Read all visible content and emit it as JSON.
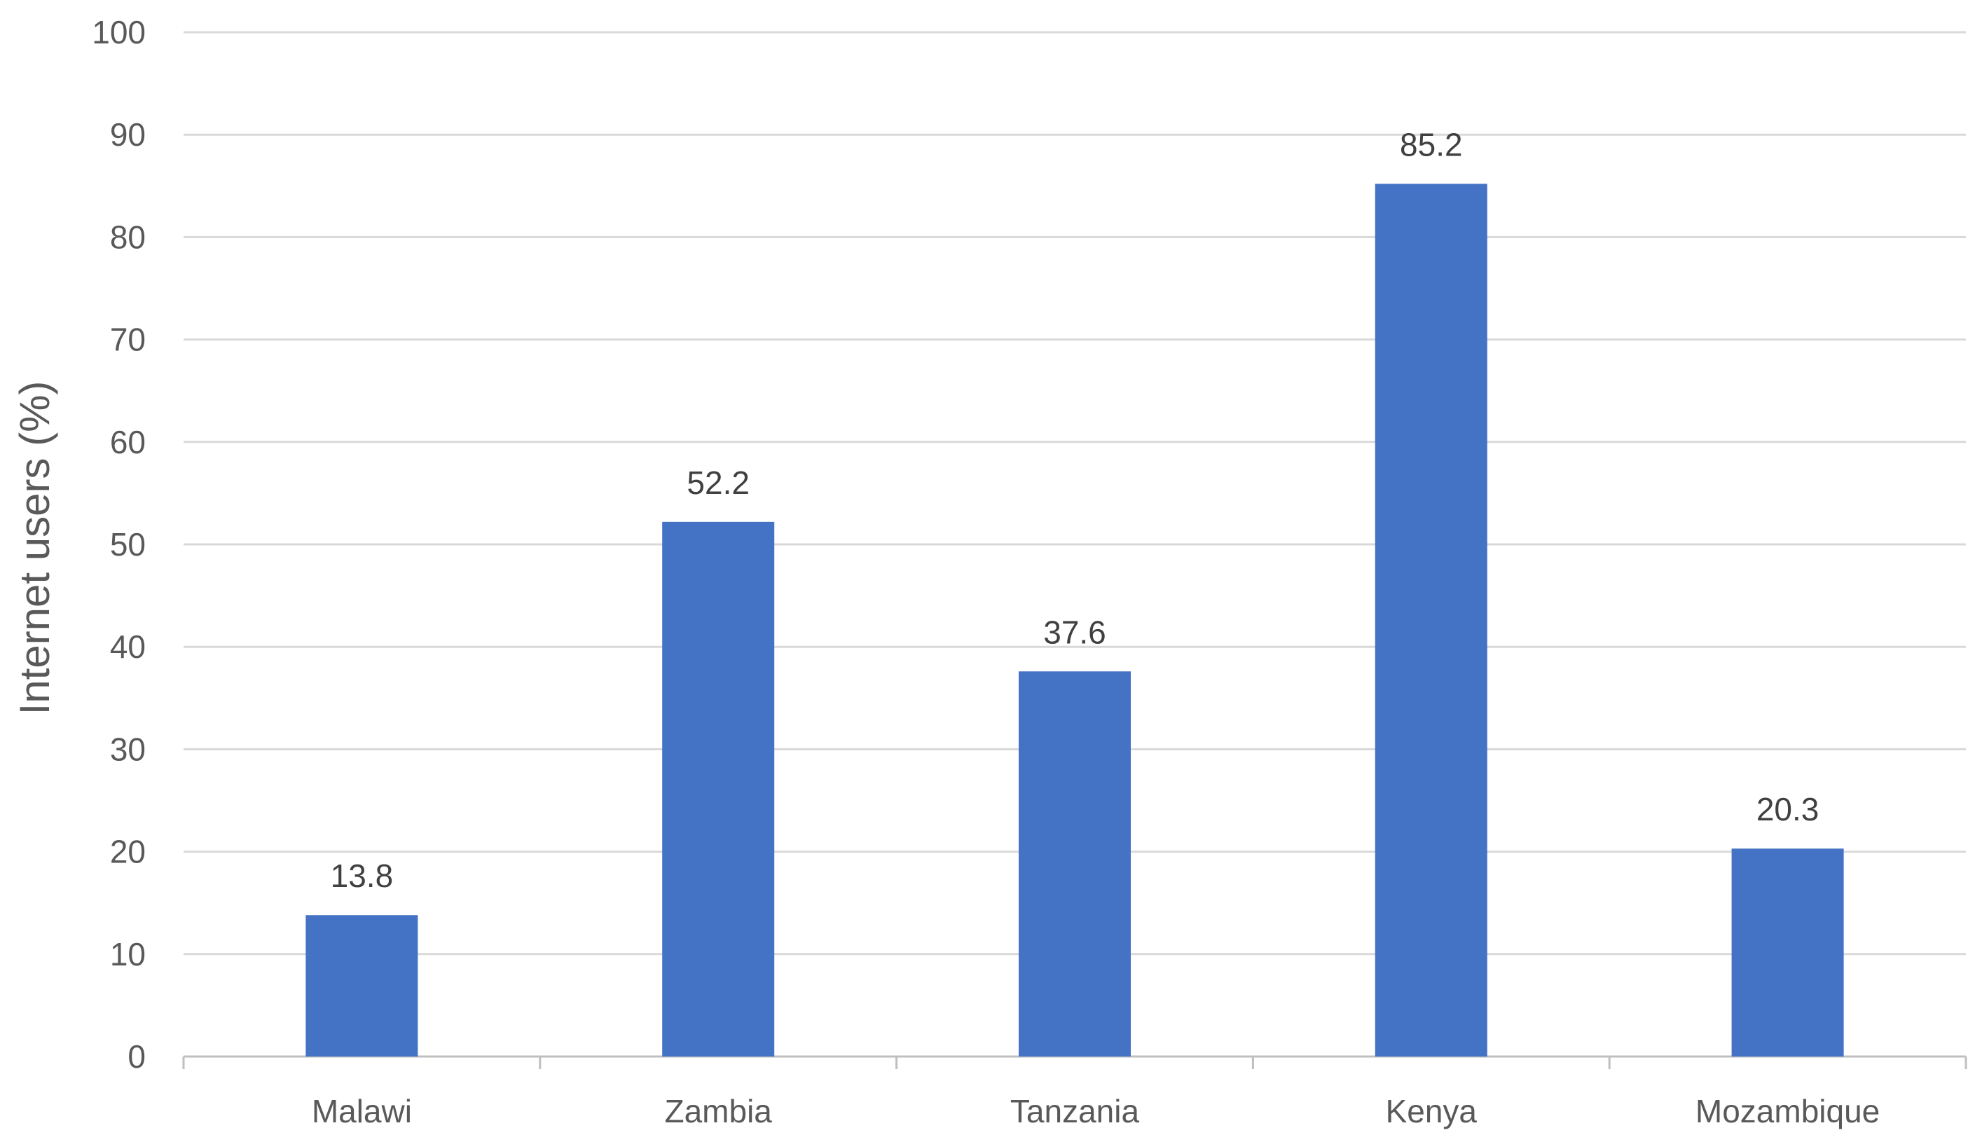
{
  "chart_data": {
    "type": "bar",
    "title": "",
    "xlabel": "",
    "ylabel": "Internet users (%)",
    "categories": [
      "Malawi",
      "Zambia",
      "Tanzania",
      "Kenya",
      "Mozambique"
    ],
    "values": [
      13.8,
      52.2,
      37.6,
      85.2,
      20.3
    ],
    "value_labels": [
      "13.8",
      "52.2",
      "37.6",
      "85.2",
      "20.3"
    ],
    "ylim": [
      0,
      100
    ],
    "yticks": [
      0,
      10,
      20,
      30,
      40,
      50,
      60,
      70,
      80,
      90,
      100
    ],
    "grid": true,
    "legend": "none",
    "colors": {
      "bar": "#4472C4",
      "grid": "#D9D9D9",
      "axis": "#BFBFBF",
      "tick_text": "#595959",
      "data_label_text": "#404040"
    }
  }
}
